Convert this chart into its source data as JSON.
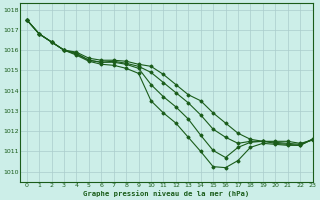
{
  "bg_color": "#cceee8",
  "grid_color": "#aacccc",
  "line_color": "#1a5c1a",
  "xlabel": "Graphe pression niveau de la mer (hPa)",
  "xlim": [
    -0.5,
    23
  ],
  "ylim": [
    1009.5,
    1018.3
  ],
  "yticks": [
    1010,
    1011,
    1012,
    1013,
    1014,
    1015,
    1016,
    1017,
    1018
  ],
  "xticks": [
    0,
    1,
    2,
    3,
    4,
    5,
    6,
    7,
    8,
    9,
    10,
    11,
    12,
    13,
    14,
    15,
    16,
    17,
    18,
    19,
    20,
    21,
    22,
    23
  ],
  "series": [
    [
      1017.5,
      1016.8,
      1016.4,
      1016.0,
      1015.9,
      1015.6,
      1015.5,
      1015.5,
      1015.45,
      1015.3,
      1015.2,
      1014.8,
      1014.3,
      1013.8,
      1013.5,
      1012.9,
      1012.4,
      1011.9,
      1011.6,
      1011.5,
      1011.5,
      1011.5,
      1011.4,
      1011.55
    ],
    [
      1017.5,
      1016.8,
      1016.4,
      1016.0,
      1015.85,
      1015.5,
      1015.4,
      1015.45,
      1015.35,
      1015.2,
      1014.9,
      1014.4,
      1013.9,
      1013.4,
      1012.8,
      1012.1,
      1011.7,
      1011.4,
      1011.5,
      1011.5,
      1011.45,
      1011.4,
      1011.35,
      1011.6
    ],
    [
      1017.5,
      1016.8,
      1016.4,
      1016.0,
      1015.8,
      1015.5,
      1015.4,
      1015.4,
      1015.3,
      1015.1,
      1014.3,
      1013.7,
      1013.2,
      1012.6,
      1011.8,
      1011.05,
      1010.7,
      1011.2,
      1011.45,
      1011.5,
      1011.4,
      1011.35,
      1011.3,
      1011.6
    ],
    [
      1017.5,
      1016.8,
      1016.4,
      1016.0,
      1015.75,
      1015.45,
      1015.3,
      1015.25,
      1015.1,
      1014.85,
      1013.5,
      1012.9,
      1012.4,
      1011.7,
      1011.0,
      1010.25,
      1010.2,
      1010.55,
      1011.2,
      1011.4,
      1011.35,
      1011.3,
      1011.3,
      1011.6
    ]
  ]
}
